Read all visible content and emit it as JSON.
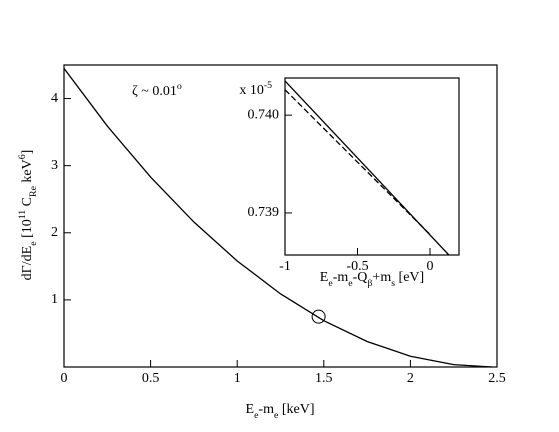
{
  "chart_data": [
    {
      "type": "line",
      "x_label": [
        "E",
        "e",
        "-m",
        "e",
        " [keV]"
      ],
      "y_label": [
        "dΓ/dE",
        "e",
        " [10",
        "11",
        " C",
        "Re",
        " keV",
        "6",
        "]"
      ],
      "annotation": [
        "ζ ~ 0.01",
        "o"
      ],
      "xlim": [
        0,
        2.5
      ],
      "ylim": [
        0,
        4.5
      ],
      "xticks": [
        0,
        0.5,
        1,
        1.5,
        2,
        2.5
      ],
      "yticks": [
        1,
        2,
        3,
        4
      ],
      "series": [
        {
          "color": "#000000",
          "linestyle": "solid",
          "x": [
            0,
            0.25,
            0.5,
            0.75,
            1,
            1.25,
            1.5,
            1.75,
            2,
            2.25,
            2.47
          ],
          "values": [
            4.45,
            3.59,
            2.83,
            2.16,
            1.58,
            1.09,
            0.69,
            0.38,
            0.16,
            0.035,
            0
          ]
        }
      ],
      "marker": {
        "x": 1.47,
        "y": 0.75
      }
    },
    {
      "type": "line",
      "x_label": [
        "E",
        "e",
        "-m",
        "e",
        "-Q",
        "β",
        "+m",
        "s",
        " [eV]"
      ],
      "y_multiplier": [
        "x 10",
        "-5"
      ],
      "xlim": [
        -1,
        0.2
      ],
      "ylim": [
        0.73857,
        0.74038
      ],
      "xticks": [
        -1,
        -0.5,
        0
      ],
      "yticks": [
        {
          "value": 0.739,
          "label": "0.739"
        },
        {
          "value": 0.74,
          "label": "0.740"
        }
      ],
      "series": [
        {
          "color": "#000000",
          "linestyle": "solid",
          "x": [
            -1,
            0.13
          ],
          "values": [
            0.74035,
            0.73857
          ]
        },
        {
          "color": "#000000",
          "linestyle": "dashed",
          "x": [
            -1,
            0
          ],
          "values": [
            0.74026,
            0.73878
          ]
        }
      ]
    }
  ]
}
